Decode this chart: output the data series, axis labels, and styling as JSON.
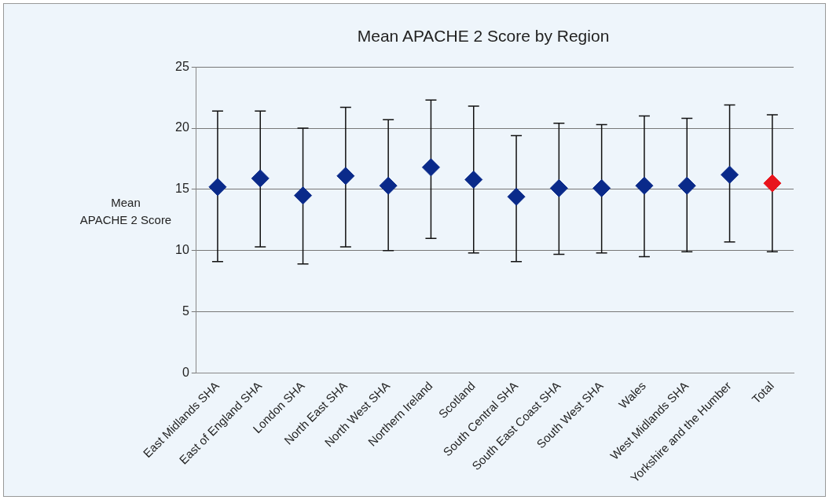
{
  "chart_data": {
    "type": "scatter",
    "title": "Mean APACHE 2 Score by Region",
    "ylabel": "Mean APACHE 2 Score",
    "categories": [
      "East Midlands SHA",
      "East of England SHA",
      "London SHA",
      "North East SHA",
      "North West SHA",
      "Northern Ireland",
      "Scotland",
      "South Central SHA",
      "South East Coast SHA",
      "South West SHA",
      "Wales",
      "West Midlands SHA",
      "Yorkshire and the Humber",
      "Total"
    ],
    "values": [
      15.2,
      15.9,
      14.5,
      16.1,
      15.3,
      16.8,
      15.8,
      14.4,
      15.1,
      15.1,
      15.3,
      15.3,
      16.2,
      15.5
    ],
    "errors": [
      [
        9.1,
        21.4
      ],
      [
        10.3,
        21.4
      ],
      [
        8.9,
        20.0
      ],
      [
        10.3,
        21.7
      ],
      [
        10.0,
        20.7
      ],
      [
        11.0,
        22.3
      ],
      [
        9.8,
        21.8
      ],
      [
        9.1,
        19.4
      ],
      [
        9.7,
        20.4
      ],
      [
        9.8,
        20.3
      ],
      [
        9.5,
        21.0
      ],
      [
        9.9,
        20.8
      ],
      [
        10.7,
        21.9
      ],
      [
        9.9,
        21.1
      ]
    ],
    "colors": [
      "#0a2a8a",
      "#0a2a8a",
      "#0a2a8a",
      "#0a2a8a",
      "#0a2a8a",
      "#0a2a8a",
      "#0a2a8a",
      "#0a2a8a",
      "#0a2a8a",
      "#0a2a8a",
      "#0a2a8a",
      "#0a2a8a",
      "#0a2a8a",
      "#e8141c"
    ],
    "marker": "diamond",
    "ylim": [
      0,
      25
    ],
    "yticks": [
      0,
      5,
      10,
      15,
      20,
      25
    ],
    "grid": "y",
    "legend": false
  }
}
